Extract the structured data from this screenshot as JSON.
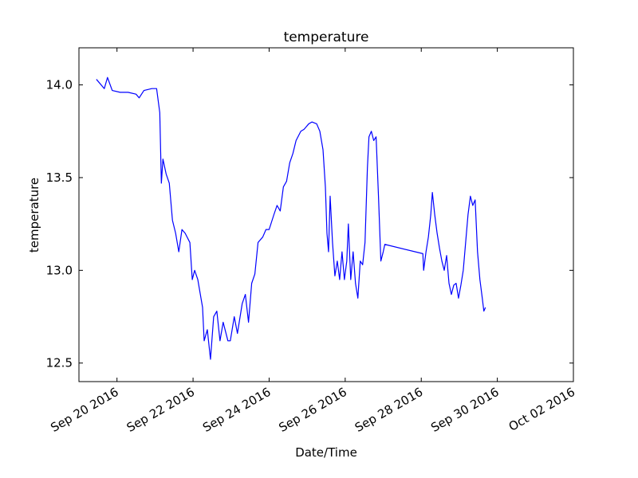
{
  "chart_data": {
    "type": "line",
    "title": "temperature",
    "x_label": "Date/Time",
    "y_label": "temperature",
    "color": "#0000ff",
    "xlim": [
      "2016-09-19",
      "2016-10-02"
    ],
    "xticks": [
      {
        "value": "2016-09-20",
        "label": "Sep 20 2016"
      },
      {
        "value": "2016-09-22",
        "label": "Sep 22 2016"
      },
      {
        "value": "2016-09-24",
        "label": "Sep 24 2016"
      },
      {
        "value": "2016-09-26",
        "label": "Sep 26 2016"
      },
      {
        "value": "2016-09-28",
        "label": "Sep 28 2016"
      },
      {
        "value": "2016-09-30",
        "label": "Sep 30 2016"
      },
      {
        "value": "2016-10-02",
        "label": "Oct 02 2016"
      }
    ],
    "ylim": [
      12.4,
      14.2
    ],
    "yticks": [
      12.5,
      {
        "value": 13,
        "label": "13.0"
      },
      13.5,
      {
        "value": 14,
        "label": "14.0"
      }
    ],
    "x": [
      "2016-09-19T11:00",
      "2016-09-19T16:00",
      "2016-09-19T18:00",
      "2016-09-19T21:00",
      "2016-09-20T02:00",
      "2016-09-20T07:00",
      "2016-09-20T12:00",
      "2016-09-20T14:00",
      "2016-09-20T17:00",
      "2016-09-20T22:00",
      "2016-09-21T01:00",
      "2016-09-21T03:00",
      "2016-09-21T04:00",
      "2016-09-21T05:00",
      "2016-09-21T07:00",
      "2016-09-21T09:00",
      "2016-09-21T11:00",
      "2016-09-21T13:00",
      "2016-09-21T15:00",
      "2016-09-21T17:00",
      "2016-09-21T19:00",
      "2016-09-21T22:00",
      "2016-09-21T23:30",
      "2016-09-22T01:00",
      "2016-09-22T03:00",
      "2016-09-22T06:00",
      "2016-09-22T07:00",
      "2016-09-22T09:00",
      "2016-09-22T11:00",
      "2016-09-22T13:00",
      "2016-09-22T15:00",
      "2016-09-22T17:00",
      "2016-09-22T19:00",
      "2016-09-22T22:00",
      "2016-09-22T23:30",
      "2016-09-23T02:00",
      "2016-09-23T04:00",
      "2016-09-23T07:00",
      "2016-09-23T09:00",
      "2016-09-23T11:00",
      "2016-09-23T13:00",
      "2016-09-23T15:00",
      "2016-09-23T17:00",
      "2016-09-23T20:00",
      "2016-09-23T22:00",
      "2016-09-24T00:00",
      "2016-09-24T03:00",
      "2016-09-24T05:00",
      "2016-09-24T07:00",
      "2016-09-24T09:00",
      "2016-09-24T11:00",
      "2016-09-24T13:00",
      "2016-09-24T15:00",
      "2016-09-24T17:00",
      "2016-09-24T20:00",
      "2016-09-24T22:00",
      "2016-09-25T01:00",
      "2016-09-25T03:00",
      "2016-09-25T06:00",
      "2016-09-25T08:00",
      "2016-09-25T10:00",
      "2016-09-25T11:30",
      "2016-09-25T12:30",
      "2016-09-25T13:30",
      "2016-09-25T14:30",
      "2016-09-25T16:00",
      "2016-09-25T17:30",
      "2016-09-25T19:00",
      "2016-09-25T20:30",
      "2016-09-25T22:00",
      "2016-09-25T23:30",
      "2016-09-26T01:00",
      "2016-09-26T02:00",
      "2016-09-26T03:30",
      "2016-09-26T05:00",
      "2016-09-26T06:30",
      "2016-09-26T08:00",
      "2016-09-26T09:30",
      "2016-09-26T11:00",
      "2016-09-26T12:30",
      "2016-09-26T14:00",
      "2016-09-26T15:00",
      "2016-09-26T16:30",
      "2016-09-26T18:00",
      "2016-09-26T19:30",
      "2016-09-26T21:00",
      "2016-09-26T22:30",
      "2016-09-27T00:00",
      "2016-09-27T01:00",
      "2016-09-28T01:00",
      "2016-09-28T01:30",
      "2016-09-28T03:00",
      "2016-09-28T04:30",
      "2016-09-28T06:00",
      "2016-09-28T07:00",
      "2016-09-28T08:30",
      "2016-09-28T10:00",
      "2016-09-28T11:30",
      "2016-09-28T13:00",
      "2016-09-28T14:30",
      "2016-09-28T16:00",
      "2016-09-28T17:30",
      "2016-09-28T19:00",
      "2016-09-28T20:30",
      "2016-09-28T22:00",
      "2016-09-28T23:30",
      "2016-09-29T01:00",
      "2016-09-29T02:30",
      "2016-09-29T04:00",
      "2016-09-29T05:30",
      "2016-09-29T07:00",
      "2016-09-29T08:30",
      "2016-09-29T10:00",
      "2016-09-29T11:30",
      "2016-09-29T13:00",
      "2016-09-29T14:30",
      "2016-09-29T15:30",
      "2016-09-29T16:30"
    ],
    "values": [
      14.03,
      13.98,
      14.04,
      13.97,
      13.96,
      13.96,
      13.95,
      13.93,
      13.97,
      13.98,
      13.98,
      13.85,
      13.47,
      13.6,
      13.52,
      13.47,
      13.27,
      13.2,
      13.1,
      13.22,
      13.2,
      13.15,
      12.95,
      13.0,
      12.95,
      12.8,
      12.62,
      12.68,
      12.52,
      12.75,
      12.78,
      12.62,
      12.72,
      12.62,
      12.62,
      12.75,
      12.66,
      12.82,
      12.87,
      12.72,
      12.93,
      12.98,
      13.15,
      13.18,
      13.22,
      13.22,
      13.3,
      13.35,
      13.32,
      13.45,
      13.48,
      13.58,
      13.63,
      13.7,
      13.75,
      13.76,
      13.79,
      13.8,
      13.79,
      13.75,
      13.65,
      13.45,
      13.2,
      13.1,
      13.4,
      13.15,
      12.97,
      13.05,
      12.95,
      13.1,
      12.95,
      13.05,
      13.25,
      12.95,
      13.1,
      12.93,
      12.85,
      13.05,
      13.03,
      13.15,
      13.55,
      13.72,
      13.75,
      13.7,
      13.72,
      13.4,
      13.05,
      13.1,
      13.14,
      13.09,
      13.0,
      13.1,
      13.18,
      13.3,
      13.42,
      13.3,
      13.2,
      13.12,
      13.05,
      13.0,
      13.08,
      12.93,
      12.87,
      12.92,
      12.93,
      12.85,
      12.92,
      13.0,
      13.15,
      13.3,
      13.4,
      13.35,
      13.38,
      13.1,
      12.95,
      12.85,
      12.78,
      12.8
    ]
  }
}
